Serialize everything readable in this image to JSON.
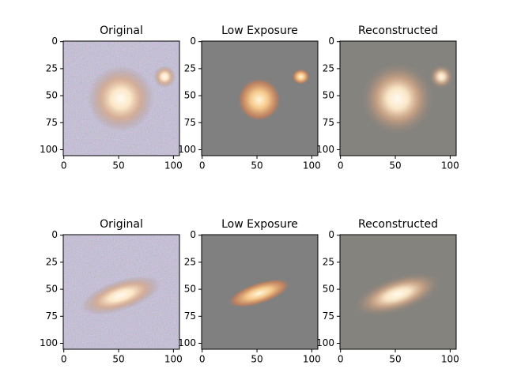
{
  "chart_data": [
    {
      "type": "image",
      "title": "Original",
      "xlim": [
        -0.5,
        105.5
      ],
      "ylim": [
        105.5,
        -0.5
      ],
      "xticks": [
        0,
        50,
        100
      ],
      "yticks": [
        0,
        25,
        50,
        75,
        100
      ]
    },
    {
      "type": "image",
      "title": "Low Exposure",
      "xlim": [
        -0.5,
        105.5
      ],
      "ylim": [
        105.5,
        -0.5
      ],
      "xticks": [
        0,
        50,
        100
      ],
      "yticks": [
        0,
        25,
        50,
        75,
        100
      ]
    },
    {
      "type": "image",
      "title": "Reconstructed",
      "xlim": [
        -0.5,
        105.5
      ],
      "ylim": [
        105.5,
        -0.5
      ],
      "xticks": [
        0,
        50,
        100
      ],
      "yticks": [
        0,
        25,
        50,
        75,
        100
      ]
    },
    {
      "type": "image",
      "title": "Original",
      "xlim": [
        -0.5,
        105.5
      ],
      "ylim": [
        105.5,
        -0.5
      ],
      "xticks": [
        0,
        50,
        100
      ],
      "yticks": [
        0,
        25,
        50,
        75,
        100
      ]
    },
    {
      "type": "image",
      "title": "Low Exposure",
      "xlim": [
        -0.5,
        105.5
      ],
      "ylim": [
        105.5,
        -0.5
      ],
      "xticks": [
        0,
        50,
        100
      ],
      "yticks": [
        0,
        25,
        50,
        75,
        100
      ]
    },
    {
      "type": "image",
      "title": "Reconstructed",
      "xlim": [
        -0.5,
        105.5
      ],
      "ylim": [
        105.5,
        -0.5
      ],
      "xticks": [
        0,
        50,
        100
      ],
      "yticks": [
        0,
        25,
        50,
        75,
        100
      ]
    }
  ]
}
